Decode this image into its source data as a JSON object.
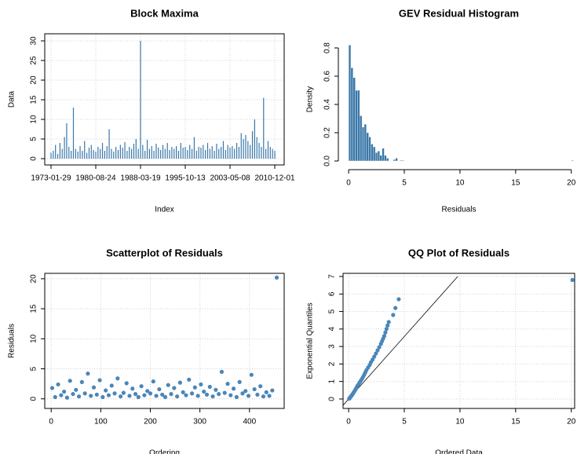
{
  "chart_data": [
    {
      "type": "needle",
      "title": "Block Maxima",
      "xlabel": "Index",
      "ylabel": "Data",
      "color": "#3a77a8",
      "grid": true,
      "box": true,
      "values": [
        1.5,
        2.0,
        3.5,
        1.2,
        4.0,
        2.5,
        5.5,
        9.0,
        3.0,
        2.0,
        13.0,
        2.5,
        1.8,
        3.2,
        2.0,
        4.5,
        1.5,
        2.8,
        3.5,
        2.2,
        1.8,
        3.0,
        2.5,
        4.0,
        2.0,
        3.2,
        7.5,
        2.5,
        1.8,
        3.0,
        2.2,
        3.5,
        2.8,
        4.2,
        2.0,
        3.0,
        2.5,
        3.8,
        5.0,
        2.5,
        30.0,
        3.5,
        2.0,
        4.8,
        2.5,
        3.2,
        2.0,
        3.8,
        2.8,
        2.2,
        3.5,
        2.5,
        4.0,
        2.2,
        3.0,
        2.5,
        3.2,
        2.0,
        4.0,
        2.8,
        3.0,
        2.2,
        3.5,
        2.5,
        5.5,
        2.0,
        3.0,
        2.8,
        3.5,
        2.2,
        4.0,
        2.5,
        3.2,
        2.0,
        3.8,
        2.5,
        3.0,
        4.5,
        2.2,
        3.5,
        2.8,
        3.2,
        2.5,
        4.0,
        3.0,
        6.5,
        5.0,
        6.0,
        4.5,
        3.5,
        7.0,
        10.0,
        5.5,
        4.0,
        3.0,
        15.5,
        2.5,
        4.5,
        3.0,
        2.5,
        2.0
      ],
      "xlim": [
        -2.8,
        104.2
      ],
      "xticks": [
        {
          "value": 0,
          "label": "1973-01-29"
        },
        {
          "value": 20,
          "label": "1980-08-24"
        },
        {
          "value": 40,
          "label": "1988-03-19"
        },
        {
          "value": 60,
          "label": "1995-10-13"
        },
        {
          "value": 80,
          "label": "2003-05-08"
        },
        {
          "value": 100,
          "label": "2010-12-01"
        }
      ],
      "ylim": [
        -1.6,
        31.8
      ],
      "yticks": [
        0,
        5,
        10,
        15,
        20,
        25,
        30
      ]
    },
    {
      "type": "histogram",
      "title": "GEV Residual Histogram",
      "xlabel": "Residuals",
      "ylabel": "Density",
      "color": "#3a77a8",
      "grid": false,
      "box": false,
      "bins": [
        0,
        0.2,
        0.4,
        0.6,
        0.8,
        1.0,
        1.2,
        1.4,
        1.6,
        1.8,
        2.0,
        2.2,
        2.4,
        2.6,
        2.8,
        3.0,
        3.2,
        3.4,
        3.6,
        3.8,
        4.0,
        4.2,
        4.4,
        4.6,
        4.8,
        5.0,
        20.0,
        20.2
      ],
      "counts": [
        0.82,
        0.66,
        0.59,
        0.5,
        0.5,
        0.32,
        0.24,
        0.26,
        0.2,
        0.17,
        0.12,
        0.1,
        0.06,
        0.07,
        0.04,
        0.09,
        0.04,
        0.02,
        0.0,
        0.0,
        0.01,
        0.02,
        0.0,
        0.005,
        0.005,
        0,
        0.005
      ],
      "xlim": [
        -0.5,
        20.3
      ],
      "xticks": [
        0,
        5,
        10,
        15,
        20
      ],
      "ylim": [
        -0.028,
        0.9
      ],
      "yticks": [
        {
          "value": 0,
          "label": "0.0"
        },
        0.2,
        0.4,
        0.6,
        0.8
      ]
    },
    {
      "type": "scatter",
      "title": "Scatterplot of Residuals",
      "xlabel": "Ordering",
      "ylabel": "Residuals",
      "color": "#4a86b8",
      "grid": true,
      "box": true,
      "x": [
        2,
        8,
        14,
        20,
        26,
        32,
        38,
        44,
        50,
        56,
        62,
        68,
        74,
        80,
        86,
        92,
        98,
        104,
        110,
        116,
        122,
        128,
        134,
        140,
        146,
        152,
        158,
        164,
        170,
        176,
        182,
        188,
        194,
        200,
        206,
        212,
        218,
        224,
        230,
        236,
        242,
        248,
        254,
        260,
        266,
        272,
        278,
        284,
        290,
        296,
        302,
        308,
        314,
        320,
        326,
        332,
        338,
        344,
        350,
        356,
        362,
        368,
        374,
        380,
        386,
        392,
        398,
        404,
        410,
        416,
        422,
        428,
        434,
        440,
        446,
        455
      ],
      "values": [
        1.8,
        0.3,
        2.4,
        0.6,
        1.2,
        0.2,
        3.0,
        0.8,
        1.5,
        0.4,
        2.8,
        0.9,
        4.2,
        0.5,
        1.9,
        0.7,
        3.1,
        0.3,
        1.4,
        0.6,
        2.2,
        0.9,
        3.4,
        0.4,
        1.0,
        2.6,
        0.5,
        1.7,
        0.8,
        0.3,
        2.1,
        0.6,
        1.3,
        0.9,
        2.9,
        0.5,
        1.6,
        0.7,
        0.3,
        2.3,
        0.8,
        1.8,
        0.4,
        2.7,
        1.1,
        0.6,
        3.2,
        0.9,
        1.9,
        0.5,
        2.4,
        1.2,
        0.7,
        2.0,
        0.4,
        1.5,
        0.8,
        4.5,
        1.0,
        2.5,
        0.6,
        1.7,
        0.3,
        2.8,
        0.9,
        1.3,
        0.5,
        4.0,
        1.6,
        0.7,
        2.1,
        0.4,
        1.1,
        0.5,
        1.4,
        20.2
      ],
      "xlim": [
        -13,
        470
      ],
      "xticks": [
        0,
        100,
        200,
        300,
        400
      ],
      "ylim": [
        -1.6,
        20.9
      ],
      "yticks": [
        0,
        5,
        10,
        15,
        20
      ]
    },
    {
      "type": "scatter",
      "title": "QQ Plot of Residuals",
      "xlabel": "Ordered Data",
      "ylabel": "Exponential Quantiles",
      "color": "#4a86b8",
      "grid": true,
      "box": true,
      "x": [
        0.05,
        0.1,
        0.15,
        0.2,
        0.28,
        0.35,
        0.42,
        0.5,
        0.58,
        0.65,
        0.72,
        0.8,
        0.9,
        1.0,
        1.1,
        1.2,
        1.3,
        1.4,
        1.5,
        1.6,
        1.75,
        1.9,
        2.0,
        2.15,
        2.3,
        2.45,
        2.6,
        2.75,
        2.9,
        3.0,
        3.1,
        3.2,
        3.3,
        3.4,
        3.5,
        3.6,
        4.0,
        4.2,
        4.5,
        20.1
      ],
      "values": [
        0.02,
        0.05,
        0.1,
        0.15,
        0.2,
        0.27,
        0.34,
        0.42,
        0.5,
        0.58,
        0.66,
        0.75,
        0.85,
        0.95,
        1.05,
        1.15,
        1.27,
        1.39,
        1.52,
        1.65,
        1.8,
        1.95,
        2.1,
        2.25,
        2.42,
        2.6,
        2.78,
        2.96,
        3.15,
        3.3,
        3.45,
        3.6,
        3.8,
        4.0,
        4.2,
        4.4,
        4.8,
        5.2,
        5.7,
        6.8
      ],
      "reference_line": {
        "x": [
          -0.5,
          9.8
        ],
        "y": [
          -0.36,
          7.0
        ]
      },
      "xlim": [
        -0.5,
        20.3
      ],
      "xticks": [
        0,
        5,
        10,
        15,
        20
      ],
      "ylim": [
        -0.54,
        7.18
      ],
      "yticks": [
        0,
        1,
        2,
        3,
        4,
        5,
        6,
        7
      ]
    }
  ]
}
